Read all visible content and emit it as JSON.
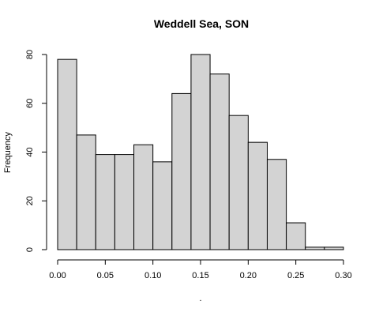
{
  "chart_data": {
    "type": "bar",
    "title": "Weddell Sea, SON",
    "xlabel": ".",
    "ylabel": "Frequency",
    "bin_edges": [
      0.0,
      0.02,
      0.04,
      0.06,
      0.08,
      0.1,
      0.12,
      0.14,
      0.16,
      0.18,
      0.2,
      0.22,
      0.24,
      0.26,
      0.28,
      0.3
    ],
    "values": [
      78,
      47,
      39,
      39,
      43,
      36,
      64,
      80,
      72,
      55,
      44,
      37,
      11,
      1,
      1
    ],
    "xlim": [
      0,
      0.3
    ],
    "ylim": [
      0,
      80
    ],
    "x_ticks": [
      0.0,
      0.05,
      0.1,
      0.15,
      0.2,
      0.25,
      0.3
    ],
    "x_tick_labels": [
      "0.00",
      "0.05",
      "0.10",
      "0.15",
      "0.20",
      "0.25",
      "0.30"
    ],
    "y_ticks": [
      0,
      20,
      40,
      60,
      80
    ],
    "y_tick_labels": [
      "0",
      "20",
      "40",
      "60",
      "80"
    ],
    "grid": false,
    "bar_color": "#d3d3d3",
    "edge_color": "#000000"
  }
}
